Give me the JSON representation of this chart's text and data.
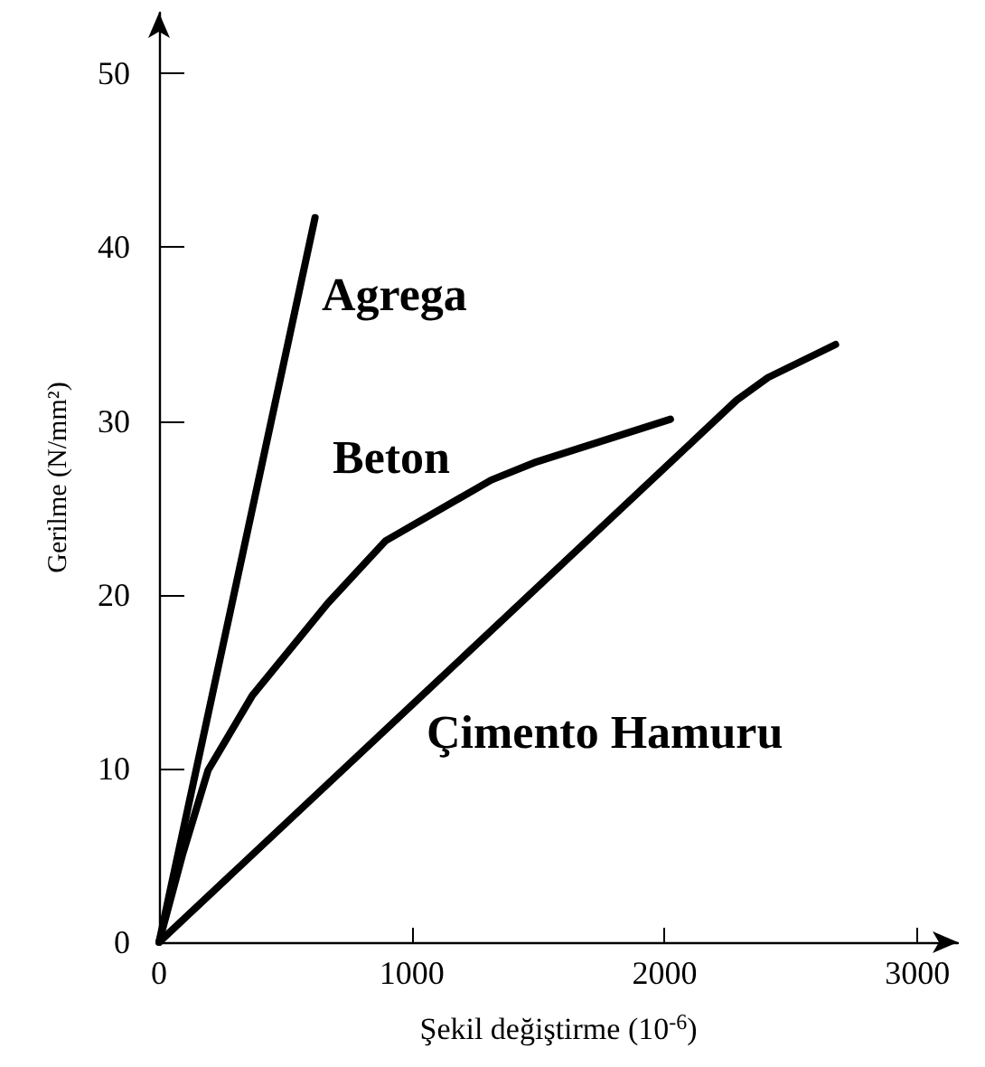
{
  "chart_data": {
    "type": "line",
    "xlabel": "Şekil değiştirme (10$^{-6}$)",
    "ylabel": "Gerilme (N/mm²)",
    "xlim": [
      0,
      3160
    ],
    "ylim": [
      0,
      53.5
    ],
    "xticks": [
      0,
      1000,
      2000,
      3000
    ],
    "yticks": [
      0,
      10,
      20,
      30,
      40,
      50
    ],
    "grid": false,
    "legend": false,
    "marker": "none",
    "line_style": "solid",
    "series": [
      {
        "name": "Agrega",
        "color": "#000000",
        "x": [
          0,
          617
        ],
        "values": [
          0,
          41.7
        ]
      },
      {
        "name": "Beton",
        "color": "#000000",
        "x": [
          0,
          94,
          194,
          369,
          667,
          896,
          1314,
          1484,
          2023
        ],
        "values": [
          0,
          5.1,
          9.9,
          14.2,
          19.5,
          23.1,
          26.6,
          27.6,
          30.1
        ]
      },
      {
        "name": "Çimento Hamuru",
        "color": "#000000",
        "x": [
          0,
          1861,
          2285,
          2409,
          2676
        ],
        "values": [
          0,
          25.4,
          31.2,
          32.5,
          34.4
        ]
      }
    ]
  }
}
